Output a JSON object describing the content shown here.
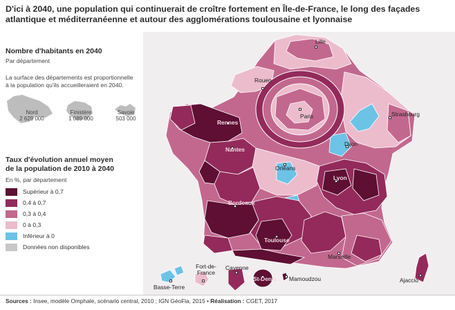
{
  "title": "D'ici à 2040, une population qui continuerait de croître fortement en Île-de-France, le long des façades atlantique et méditerranéenne et autour des agglomérations toulousaine et lyonnaise",
  "legend_size": {
    "title": "Nombre d'habitants en 2040",
    "subtitle": "Par département",
    "note": "La surface des départements est proportionnelle à la population qu'ils accueilleraient en 2040.",
    "samples": [
      {
        "name": "Nord",
        "value": "2 629 000"
      },
      {
        "name": "Finistère",
        "value": "1 089 000"
      },
      {
        "name": "Savoie",
        "value": "503 000"
      }
    ]
  },
  "legend_rate": {
    "title_line1": "Taux d'évolution annuel moyen",
    "title_line2": "de la population de 2010 à 2040",
    "subtitle": "En %, par département",
    "classes": [
      {
        "label": "Supérieur à 0,7",
        "color": "#5e0f33"
      },
      {
        "label": "0,4 à 0,7",
        "color": "#932a5b"
      },
      {
        "label": "0,3 à 0,4",
        "color": "#c2688e"
      },
      {
        "label": "0 à 0,3",
        "color": "#ecbccd"
      },
      {
        "label": "Inférieur à 0",
        "color": "#6cc3e6"
      },
      {
        "label": "Données non disponibles",
        "color": "#c8c8c8"
      }
    ]
  },
  "cities": {
    "lille": "Lille",
    "rouen": "Rouen",
    "paris": "Paris",
    "strasbourg": "Strasbourg",
    "rennes": "Rennes",
    "nantes": "Nantes",
    "dijon": "Dijon",
    "orleans": "Orléans",
    "lyon": "Lyon",
    "bordeaux": "Bordeaux",
    "toulouse": "Toulouse",
    "marseille": "Marseille",
    "ajaccio": "Ajaccio",
    "basse_terre": "Basse-Terre",
    "fort_de_france": "Fort-de-France",
    "cayenne": "Cayenne",
    "saint_denis": "St-Denis",
    "mamoudzou": "Mamoudzou"
  },
  "footer": {
    "sources_label": "Sources :",
    "sources_text": "Insee, modèle Omphale, scénario central, 2010 ; IGN GéoFla, 2015 •",
    "realisation_label": "Réalisation :",
    "realisation_text": "CGET, 2017"
  }
}
